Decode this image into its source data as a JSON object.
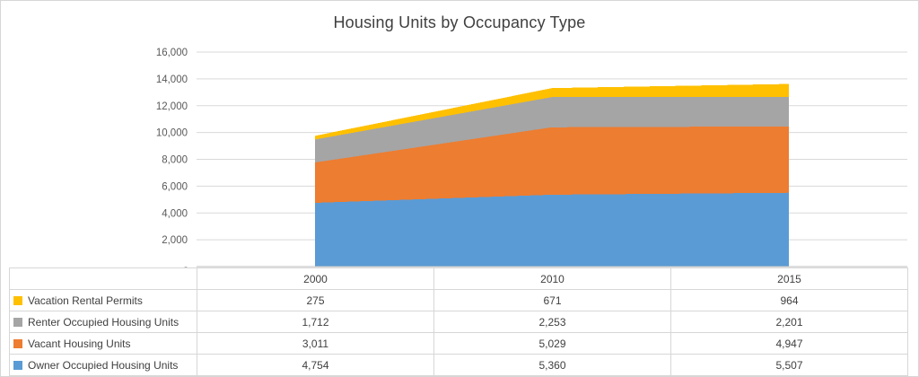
{
  "chart_data": {
    "type": "area",
    "stacked": true,
    "title": "Housing Units by Occupancy Type",
    "categories": [
      "2000",
      "2010",
      "2015"
    ],
    "series": [
      {
        "name": "Owner Occupied Housing Units",
        "color": "#5B9BD5",
        "values": [
          4754,
          5360,
          5507
        ]
      },
      {
        "name": "Vacant Housing Units",
        "color": "#ED7D31",
        "values": [
          3011,
          5029,
          4947
        ]
      },
      {
        "name": "Renter Occupied Housing Units",
        "color": "#A5A5A5",
        "values": [
          1712,
          2253,
          2201
        ]
      },
      {
        "name": "Vacation Rental Permits",
        "color": "#FFC000",
        "values": [
          275,
          671,
          964
        ]
      }
    ],
    "xlabel": "",
    "ylabel": "",
    "ylim": [
      0,
      16000
    ],
    "ytick_step": 2000,
    "ytick_labels": [
      "-",
      "2,000",
      "4,000",
      "6,000",
      "8,000",
      "10,000",
      "12,000",
      "14,000",
      "16,000"
    ],
    "grid": true,
    "legend_position": "data-table-left"
  },
  "colors": {
    "grid": "#d9d9d9",
    "axis": "#bfbfbf",
    "text": "#595959"
  },
  "table": {
    "header": [
      "",
      "2000",
      "2010",
      "2015"
    ],
    "rows": [
      {
        "label": "Vacation Rental Permits",
        "color": "#FFC000",
        "values": [
          "275",
          "671",
          "964"
        ]
      },
      {
        "label": "Renter Occupied Housing Units",
        "color": "#A5A5A5",
        "values": [
          "1,712",
          "2,253",
          "2,201"
        ]
      },
      {
        "label": "Vacant Housing Units",
        "color": "#ED7D31",
        "values": [
          "3,011",
          "5,029",
          "4,947"
        ]
      },
      {
        "label": "Owner Occupied Housing Units",
        "color": "#5B9BD5",
        "values": [
          "4,754",
          "5,360",
          "5,507"
        ]
      }
    ]
  }
}
